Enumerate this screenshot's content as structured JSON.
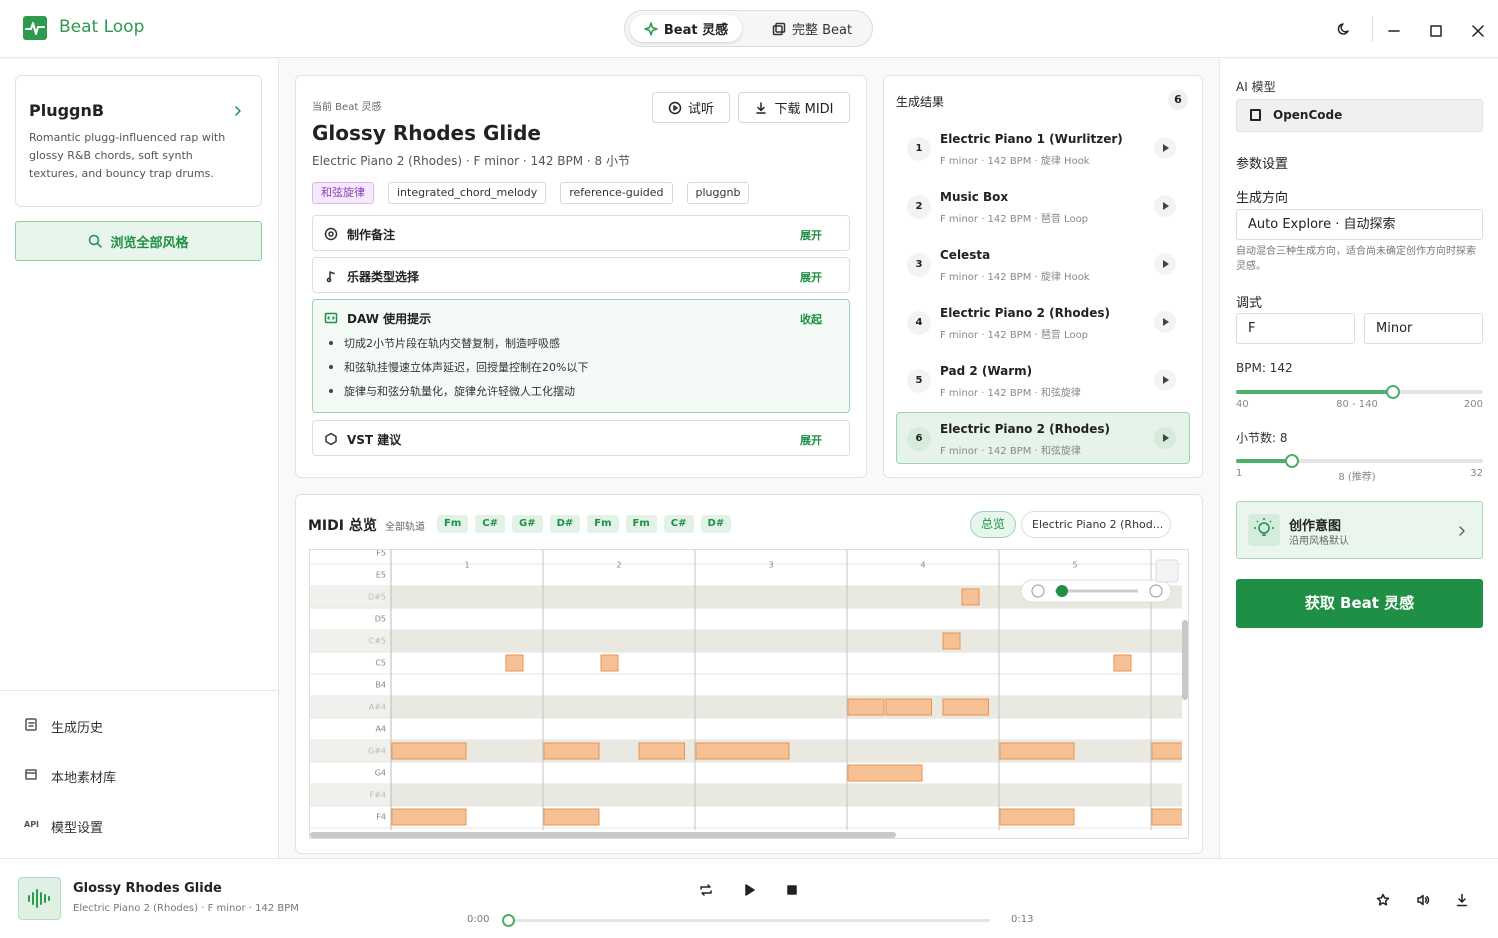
{
  "app": {
    "name": "Beat Loop",
    "tabs": [
      "Beat 灵感",
      "完整 Beat"
    ]
  },
  "sidebar": {
    "style": {
      "name": "PluggnB",
      "description": "Romantic plugg-influenced rap with glossy R&B chords, soft synth textures, and bouncy trap drums."
    },
    "browse_button": "浏览全部风格",
    "nav": [
      {
        "label": "生成历史"
      },
      {
        "label": "本地素材库"
      },
      {
        "label": "模型设置",
        "badge": "API"
      }
    ]
  },
  "current": {
    "label": "当前 Beat 灵感",
    "title": "Glossy Rhodes Glide",
    "meta": "Electric Piano 2 (Rhodes) · F minor · 142 BPM · 8 小节",
    "actions": [
      "试听",
      "下载 MIDI"
    ],
    "tags": [
      "和弦旋律",
      "integrated_chord_melody",
      "reference-guided",
      "pluggnb"
    ],
    "sections": [
      {
        "title": "制作备注",
        "toggle": "展开"
      },
      {
        "title": "乐器类型选择",
        "toggle": "展开"
      },
      {
        "title": "DAW 使用提示",
        "toggle": "收起",
        "items": [
          "切成2小节片段在轨内交替复制，制造呼吸感",
          "和弦轨挂慢速立体声延迟，回授量控制在20%以下",
          "旋律与和弦分轨量化，旋律允许轻微人工化摆动"
        ]
      },
      {
        "title": "VST 建议",
        "toggle": "展开"
      }
    ]
  },
  "results": {
    "title": "生成结果",
    "count": 6,
    "selected": 6,
    "items": [
      {
        "index": 1,
        "name": "Electric Piano 1 (Wurlitzer)",
        "meta": "F minor · 142 BPM · 旋律 Hook"
      },
      {
        "index": 2,
        "name": "Music Box",
        "meta": "F minor · 142 BPM · 琶音 Loop"
      },
      {
        "index": 3,
        "name": "Celesta",
        "meta": "F minor · 142 BPM · 旋律 Hook"
      },
      {
        "index": 4,
        "name": "Electric Piano 2 (Rhodes)",
        "meta": "F minor · 142 BPM · 琶音 Loop"
      },
      {
        "index": 5,
        "name": "Pad 2 (Warm)",
        "meta": "F minor · 142 BPM · 和弦旋律"
      },
      {
        "index": 6,
        "name": "Electric Piano 2 (Rhodes)",
        "meta": "F minor · 142 BPM · 和弦旋律"
      }
    ]
  },
  "midi": {
    "title": "MIDI 总览",
    "scope": "全部轨道",
    "chords": [
      "Fm",
      "C#",
      "G#",
      "D#",
      "Fm",
      "Fm",
      "C#",
      "D#"
    ],
    "view_button": "总览",
    "track": "Electric Piano 2 (Rhod...",
    "bars": [
      1,
      2,
      3,
      4,
      5
    ],
    "pitches": [
      "F5",
      "E5",
      "D#5",
      "D5",
      "C#5",
      "C5",
      "B4",
      "A#4",
      "A4",
      "G#4",
      "G4",
      "F#4",
      "F4"
    ],
    "notes": [
      {
        "pitch": "D#5",
        "start": 15,
        "length": 0.5
      },
      {
        "pitch": "C#5",
        "start": 14.5,
        "length": 0.5
      },
      {
        "pitch": "C5",
        "start": 3,
        "length": 0.5
      },
      {
        "pitch": "C5",
        "start": 5.5,
        "length": 0.5
      },
      {
        "pitch": "C5",
        "start": 19,
        "length": 0.5
      },
      {
        "pitch": "A#4",
        "start": 12,
        "length": 1
      },
      {
        "pitch": "A#4",
        "start": 13,
        "length": 1.25
      },
      {
        "pitch": "A#4",
        "start": 14.5,
        "length": 1.25
      },
      {
        "pitch": "G#4",
        "start": 0,
        "length": 2
      },
      {
        "pitch": "G#4",
        "start": 4,
        "length": 1.5
      },
      {
        "pitch": "G#4",
        "start": 6.5,
        "length": 1.25
      },
      {
        "pitch": "G#4",
        "start": 8,
        "length": 2.5
      },
      {
        "pitch": "G#4",
        "start": 16,
        "length": 2
      },
      {
        "pitch": "G#4",
        "start": 20,
        "length": 1
      },
      {
        "pitch": "G4",
        "start": 12,
        "length": 2
      },
      {
        "pitch": "F4",
        "start": 0,
        "length": 2
      },
      {
        "pitch": "F4",
        "start": 4,
        "length": 1.5
      },
      {
        "pitch": "F4",
        "start": 16,
        "length": 2
      },
      {
        "pitch": "F4",
        "start": 20,
        "length": 1
      }
    ]
  },
  "params": {
    "model_label": "AI 模型",
    "model": "OpenCode",
    "title": "参数设置",
    "direction_label": "生成方向",
    "direction": "Auto Explore · 自动探索",
    "direction_hint": "自动混合三种生成方向，适合尚未确定创作方向时探索灵感。",
    "key_label": "调式",
    "key": "F",
    "mode": "Minor",
    "bpm": {
      "label": "BPM: 142",
      "value": 142,
      "min": 40,
      "max": 200,
      "hint": "80 - 140"
    },
    "bars": {
      "label": "小节数: 8",
      "value": 8,
      "min": 1,
      "max": 32,
      "hint": "8 (推荐)"
    },
    "intent": {
      "title": "创作意图",
      "subtitle": "沿用风格默认"
    },
    "submit": "获取 Beat 灵感"
  },
  "player": {
    "title": "Glossy Rhodes Glide",
    "meta": "Electric Piano 2 (Rhodes) · F minor · 142 BPM",
    "elapsed": "0:00",
    "duration": "0:13"
  }
}
